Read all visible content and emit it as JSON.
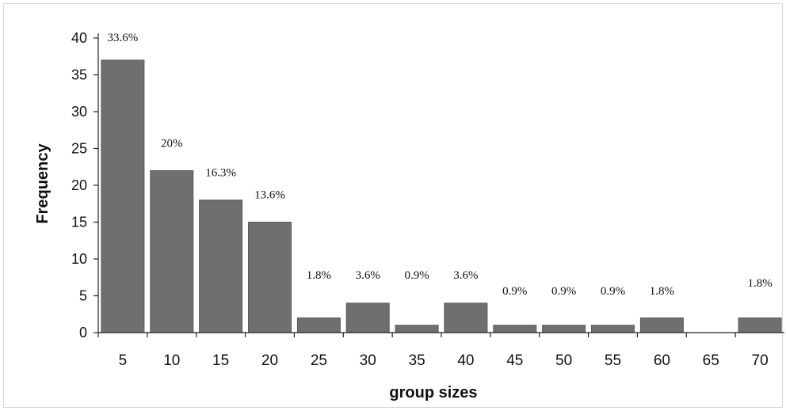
{
  "chart_data": {
    "type": "bar",
    "title": "",
    "xlabel": "group sizes",
    "ylabel": "Frequency",
    "ylim": [
      0,
      40
    ],
    "yticks": [
      0,
      5,
      10,
      15,
      20,
      25,
      30,
      35,
      40
    ],
    "grid": false,
    "legend": "none",
    "bar_color": "#6f6f6f",
    "categories": [
      "5",
      "10",
      "15",
      "20",
      "25",
      "30",
      "35",
      "40",
      "45",
      "50",
      "55",
      "60",
      "65",
      "70"
    ],
    "values": [
      37,
      22,
      18,
      15,
      2,
      4,
      1,
      4,
      1,
      1,
      1,
      2,
      0,
      2
    ],
    "data_labels": [
      "33.6%",
      "20%",
      "16.3%",
      "13.6%",
      "1.8%",
      "3.6%",
      "0.9%",
      "3.6%",
      "0.9%",
      "0.9%",
      "0.9%",
      "1.8%",
      "",
      "1.8%"
    ]
  }
}
